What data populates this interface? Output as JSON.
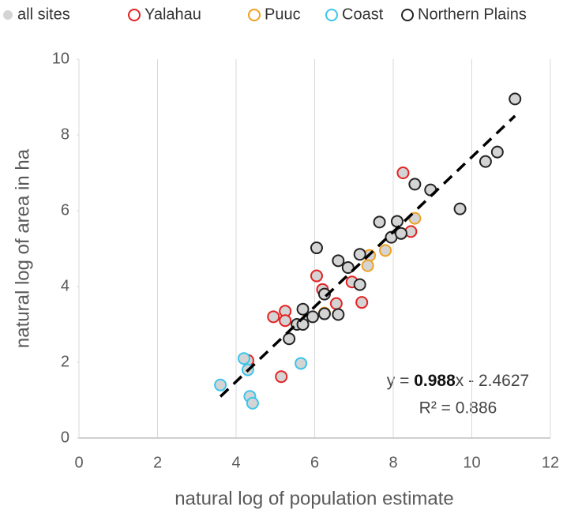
{
  "chart_data": {
    "type": "scatter",
    "x_label": "natural log of population estimate",
    "y_label": "natural log of area in ha",
    "xlim": [
      0,
      12
    ],
    "ylim": [
      0,
      10
    ],
    "xticks": [
      0,
      2,
      4,
      6,
      8,
      10,
      12
    ],
    "yticks": [
      0,
      2,
      4,
      6,
      8,
      10
    ],
    "grid": true,
    "fill_label": "all sites",
    "fill_color": "#d4d4d4",
    "series": [
      {
        "name": "Yalahau",
        "color": "#e52222",
        "x": [
          4.3,
          4.95,
          5.25,
          5.25,
          5.15,
          6.05,
          6.2,
          6.55,
          6.95,
          7.2,
          8.25,
          8.45
        ],
        "y": [
          2.05,
          3.2,
          3.35,
          3.1,
          1.62,
          4.28,
          3.92,
          3.55,
          4.12,
          3.58,
          7.0,
          5.45
        ]
      },
      {
        "name": "Puuc",
        "color": "#f0a020",
        "x": [
          6.25,
          7.4,
          7.35,
          7.8,
          8.55
        ],
        "y": [
          3.3,
          4.82,
          4.55,
          4.95,
          5.8
        ]
      },
      {
        "name": "Coast",
        "color": "#3cc6ea",
        "x": [
          3.6,
          4.2,
          4.3,
          4.35,
          4.42,
          5.65
        ],
        "y": [
          1.4,
          2.1,
          1.8,
          1.1,
          0.92,
          1.97
        ]
      },
      {
        "name": "Northern Plains",
        "color": "#222222",
        "x": [
          5.35,
          5.55,
          5.7,
          5.7,
          5.95,
          6.05,
          6.25,
          6.25,
          6.6,
          6.6,
          6.85,
          7.15,
          7.15,
          7.65,
          7.95,
          8.1,
          8.2,
          8.55,
          8.95,
          9.7,
          10.35,
          10.65,
          11.1
        ],
        "y": [
          2.62,
          3.0,
          3.0,
          3.4,
          3.2,
          5.02,
          3.8,
          3.28,
          4.68,
          3.26,
          4.5,
          4.85,
          4.05,
          5.7,
          5.3,
          5.72,
          5.4,
          6.7,
          6.55,
          6.05,
          7.3,
          7.55,
          8.95
        ]
      }
    ],
    "trendline": {
      "slope": 0.988,
      "intercept": -2.4627,
      "x_range": [
        3.6,
        11.1
      ],
      "equation": [
        "y = ",
        "0.988",
        "x - 2.4627"
      ],
      "r_squared_label": "R² = 0.886"
    }
  }
}
